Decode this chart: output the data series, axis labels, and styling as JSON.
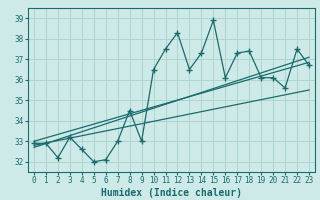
{
  "title": "",
  "xlabel": "Humidex (Indice chaleur)",
  "bg_color": "#ceeae8",
  "line_color": "#1a6b6b",
  "grid_color": "#aed4d0",
  "xlim": [
    -0.5,
    23.5
  ],
  "ylim": [
    31.5,
    39.5
  ],
  "xticks": [
    0,
    1,
    2,
    3,
    4,
    5,
    6,
    7,
    8,
    9,
    10,
    11,
    12,
    13,
    14,
    15,
    16,
    17,
    18,
    19,
    20,
    21,
    22,
    23
  ],
  "yticks": [
    32,
    33,
    34,
    35,
    36,
    37,
    38,
    39
  ],
  "main_x": [
    0,
    1,
    2,
    3,
    4,
    5,
    6,
    7,
    8,
    9,
    10,
    11,
    12,
    13,
    14,
    15,
    16,
    17,
    18,
    19,
    20,
    21,
    22,
    23
  ],
  "main_y": [
    32.9,
    32.9,
    32.2,
    33.2,
    32.6,
    32.0,
    32.1,
    33.0,
    34.5,
    33.0,
    36.5,
    37.5,
    38.3,
    36.5,
    37.3,
    38.9,
    36.1,
    37.3,
    37.4,
    36.1,
    36.1,
    35.6,
    37.5,
    36.7
  ],
  "trend1_x": [
    0,
    23
  ],
  "trend1_y": [
    33.0,
    36.85
  ],
  "trend2_x": [
    0,
    23
  ],
  "trend2_y": [
    32.8,
    35.5
  ],
  "trend3_x": [
    0,
    23
  ],
  "trend3_y": [
    32.7,
    37.1
  ]
}
